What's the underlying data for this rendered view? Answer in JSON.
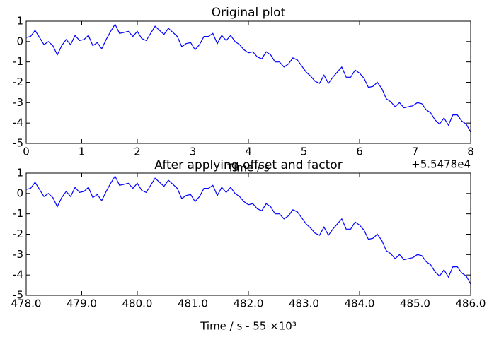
{
  "chart_data": [
    {
      "type": "line",
      "title": "Original plot",
      "xlabel": "Time / s",
      "offset_text": "+5.5478e4",
      "color": "#0000ff",
      "x": [
        0,
        0.08,
        0.16,
        0.24,
        0.32,
        0.4,
        0.48,
        0.56,
        0.64,
        0.72,
        0.8,
        0.88,
        0.96,
        1.04,
        1.12,
        1.2,
        1.28,
        1.36,
        1.44,
        1.52,
        1.6,
        1.68,
        1.76,
        1.84,
        1.92,
        2,
        2.08,
        2.16,
        2.24,
        2.32,
        2.4,
        2.48,
        2.56,
        2.64,
        2.72,
        2.8,
        2.88,
        2.96,
        3.04,
        3.12,
        3.2,
        3.28,
        3.36,
        3.44,
        3.52,
        3.6,
        3.68,
        3.76,
        3.84,
        3.92,
        4,
        4.08,
        4.16,
        4.24,
        4.32,
        4.4,
        4.48,
        4.56,
        4.64,
        4.72,
        4.8,
        4.88,
        4.96,
        5.04,
        5.12,
        5.2,
        5.28,
        5.36,
        5.44,
        5.52,
        5.6,
        5.68,
        5.76,
        5.84,
        5.92,
        6,
        6.08,
        6.16,
        6.24,
        6.32,
        6.4,
        6.48,
        6.56,
        6.64,
        6.72,
        6.8,
        6.88,
        6.96,
        7.04,
        7.12,
        7.2,
        7.28,
        7.36,
        7.44,
        7.52,
        7.6,
        7.68,
        7.76,
        7.84,
        7.92,
        8
      ],
      "values": [
        0.2,
        0.25,
        0.55,
        0.2,
        -0.15,
        0,
        -0.2,
        -0.65,
        -0.2,
        0.1,
        -0.15,
        0.3,
        0.05,
        0.1,
        0.3,
        -0.2,
        -0.05,
        -0.35,
        0.1,
        0.5,
        0.85,
        0.4,
        0.45,
        0.5,
        0.25,
        0.5,
        0.15,
        0.05,
        0.4,
        0.75,
        0.55,
        0.35,
        0.65,
        0.45,
        0.25,
        -0.25,
        -0.1,
        -0.05,
        -0.4,
        -0.15,
        0.25,
        0.25,
        0.4,
        -0.1,
        0.3,
        0.05,
        0.3,
        0,
        -0.15,
        -0.4,
        -0.55,
        -0.5,
        -0.75,
        -0.85,
        -0.5,
        -0.65,
        -1,
        -1,
        -1.25,
        -1.1,
        -0.8,
        -0.9,
        -1.2,
        -1.5,
        -1.7,
        -1.95,
        -2.05,
        -1.65,
        -2.05,
        -1.75,
        -1.5,
        -1.25,
        -1.75,
        -1.75,
        -1.4,
        -1.55,
        -1.8,
        -2.25,
        -2.2,
        -2,
        -2.3,
        -2.8,
        -2.95,
        -3.2,
        -3,
        -3.25,
        -3.2,
        -3.15,
        -3,
        -3.05,
        -3.35,
        -3.5,
        -3.85,
        -4.05,
        -3.75,
        -4.1,
        -3.6,
        -3.6,
        -3.9,
        -4.05,
        -4.45
      ],
      "xlim": [
        0,
        8
      ],
      "xticks": [
        0,
        1,
        2,
        3,
        4,
        5,
        6,
        7,
        8
      ],
      "ylim": [
        -5,
        1
      ],
      "yticks": [
        -5,
        -4,
        -3,
        -2,
        -1,
        0,
        1
      ]
    },
    {
      "type": "line",
      "title": "After applying offset and factor",
      "xlabel": "Time / s  - 55 ×10³",
      "color": "#0000ff",
      "x": [
        478,
        478.08,
        478.16,
        478.24,
        478.32,
        478.4,
        478.48,
        478.56,
        478.64,
        478.72,
        478.8,
        478.88,
        478.96,
        479.04,
        479.12,
        479.2,
        479.28,
        479.36,
        479.44,
        479.52,
        479.6,
        479.68,
        479.76,
        479.84,
        479.92,
        480,
        480.08,
        480.16,
        480.24,
        480.32,
        480.4,
        480.48,
        480.56,
        480.64,
        480.72,
        480.8,
        480.88,
        480.96,
        481.04,
        481.12,
        481.2,
        481.28,
        481.36,
        481.44,
        481.52,
        481.6,
        481.68,
        481.76,
        481.84,
        481.92,
        482,
        482.08,
        482.16,
        482.24,
        482.32,
        482.4,
        482.48,
        482.56,
        482.64,
        482.72,
        482.8,
        482.88,
        482.96,
        483.04,
        483.12,
        483.2,
        483.28,
        483.36,
        483.44,
        483.52,
        483.6,
        483.68,
        483.76,
        483.84,
        483.92,
        484,
        484.08,
        484.16,
        484.24,
        484.32,
        484.4,
        484.48,
        484.56,
        484.64,
        484.72,
        484.8,
        484.88,
        484.96,
        485.04,
        485.12,
        485.2,
        485.28,
        485.36,
        485.44,
        485.52,
        485.6,
        485.68,
        485.76,
        485.84,
        485.92,
        486
      ],
      "values": [
        0.2,
        0.25,
        0.55,
        0.2,
        -0.15,
        0,
        -0.2,
        -0.65,
        -0.2,
        0.1,
        -0.15,
        0.3,
        0.05,
        0.1,
        0.3,
        -0.2,
        -0.05,
        -0.35,
        0.1,
        0.5,
        0.85,
        0.4,
        0.45,
        0.5,
        0.25,
        0.5,
        0.15,
        0.05,
        0.4,
        0.75,
        0.55,
        0.35,
        0.65,
        0.45,
        0.25,
        -0.25,
        -0.1,
        -0.05,
        -0.4,
        -0.15,
        0.25,
        0.25,
        0.4,
        -0.1,
        0.3,
        0.05,
        0.3,
        0,
        -0.15,
        -0.4,
        -0.55,
        -0.5,
        -0.75,
        -0.85,
        -0.5,
        -0.65,
        -1,
        -1,
        -1.25,
        -1.1,
        -0.8,
        -0.9,
        -1.2,
        -1.5,
        -1.7,
        -1.95,
        -2.05,
        -1.65,
        -2.05,
        -1.75,
        -1.5,
        -1.25,
        -1.75,
        -1.75,
        -1.4,
        -1.55,
        -1.8,
        -2.25,
        -2.2,
        -2,
        -2.3,
        -2.8,
        -2.95,
        -3.2,
        -3,
        -3.25,
        -3.2,
        -3.15,
        -3,
        -3.05,
        -3.35,
        -3.5,
        -3.85,
        -4.05,
        -3.75,
        -4.1,
        -3.6,
        -3.6,
        -3.9,
        -4.05,
        -4.45
      ],
      "xlim": [
        478,
        486
      ],
      "xticks": [
        {
          "value": 478,
          "label": "478.0"
        },
        {
          "value": 479,
          "label": "479.0"
        },
        {
          "value": 480,
          "label": "480.0"
        },
        {
          "value": 481,
          "label": "481.0"
        },
        {
          "value": 482,
          "label": "482.0"
        },
        {
          "value": 483,
          "label": "483.0"
        },
        {
          "value": 484,
          "label": "484.0"
        },
        {
          "value": 485,
          "label": "485.0"
        },
        {
          "value": 486,
          "label": "486.0"
        }
      ],
      "ylim": [
        -5,
        1
      ],
      "yticks": [
        -5,
        -4,
        -3,
        -2,
        -1,
        0,
        1
      ]
    }
  ]
}
